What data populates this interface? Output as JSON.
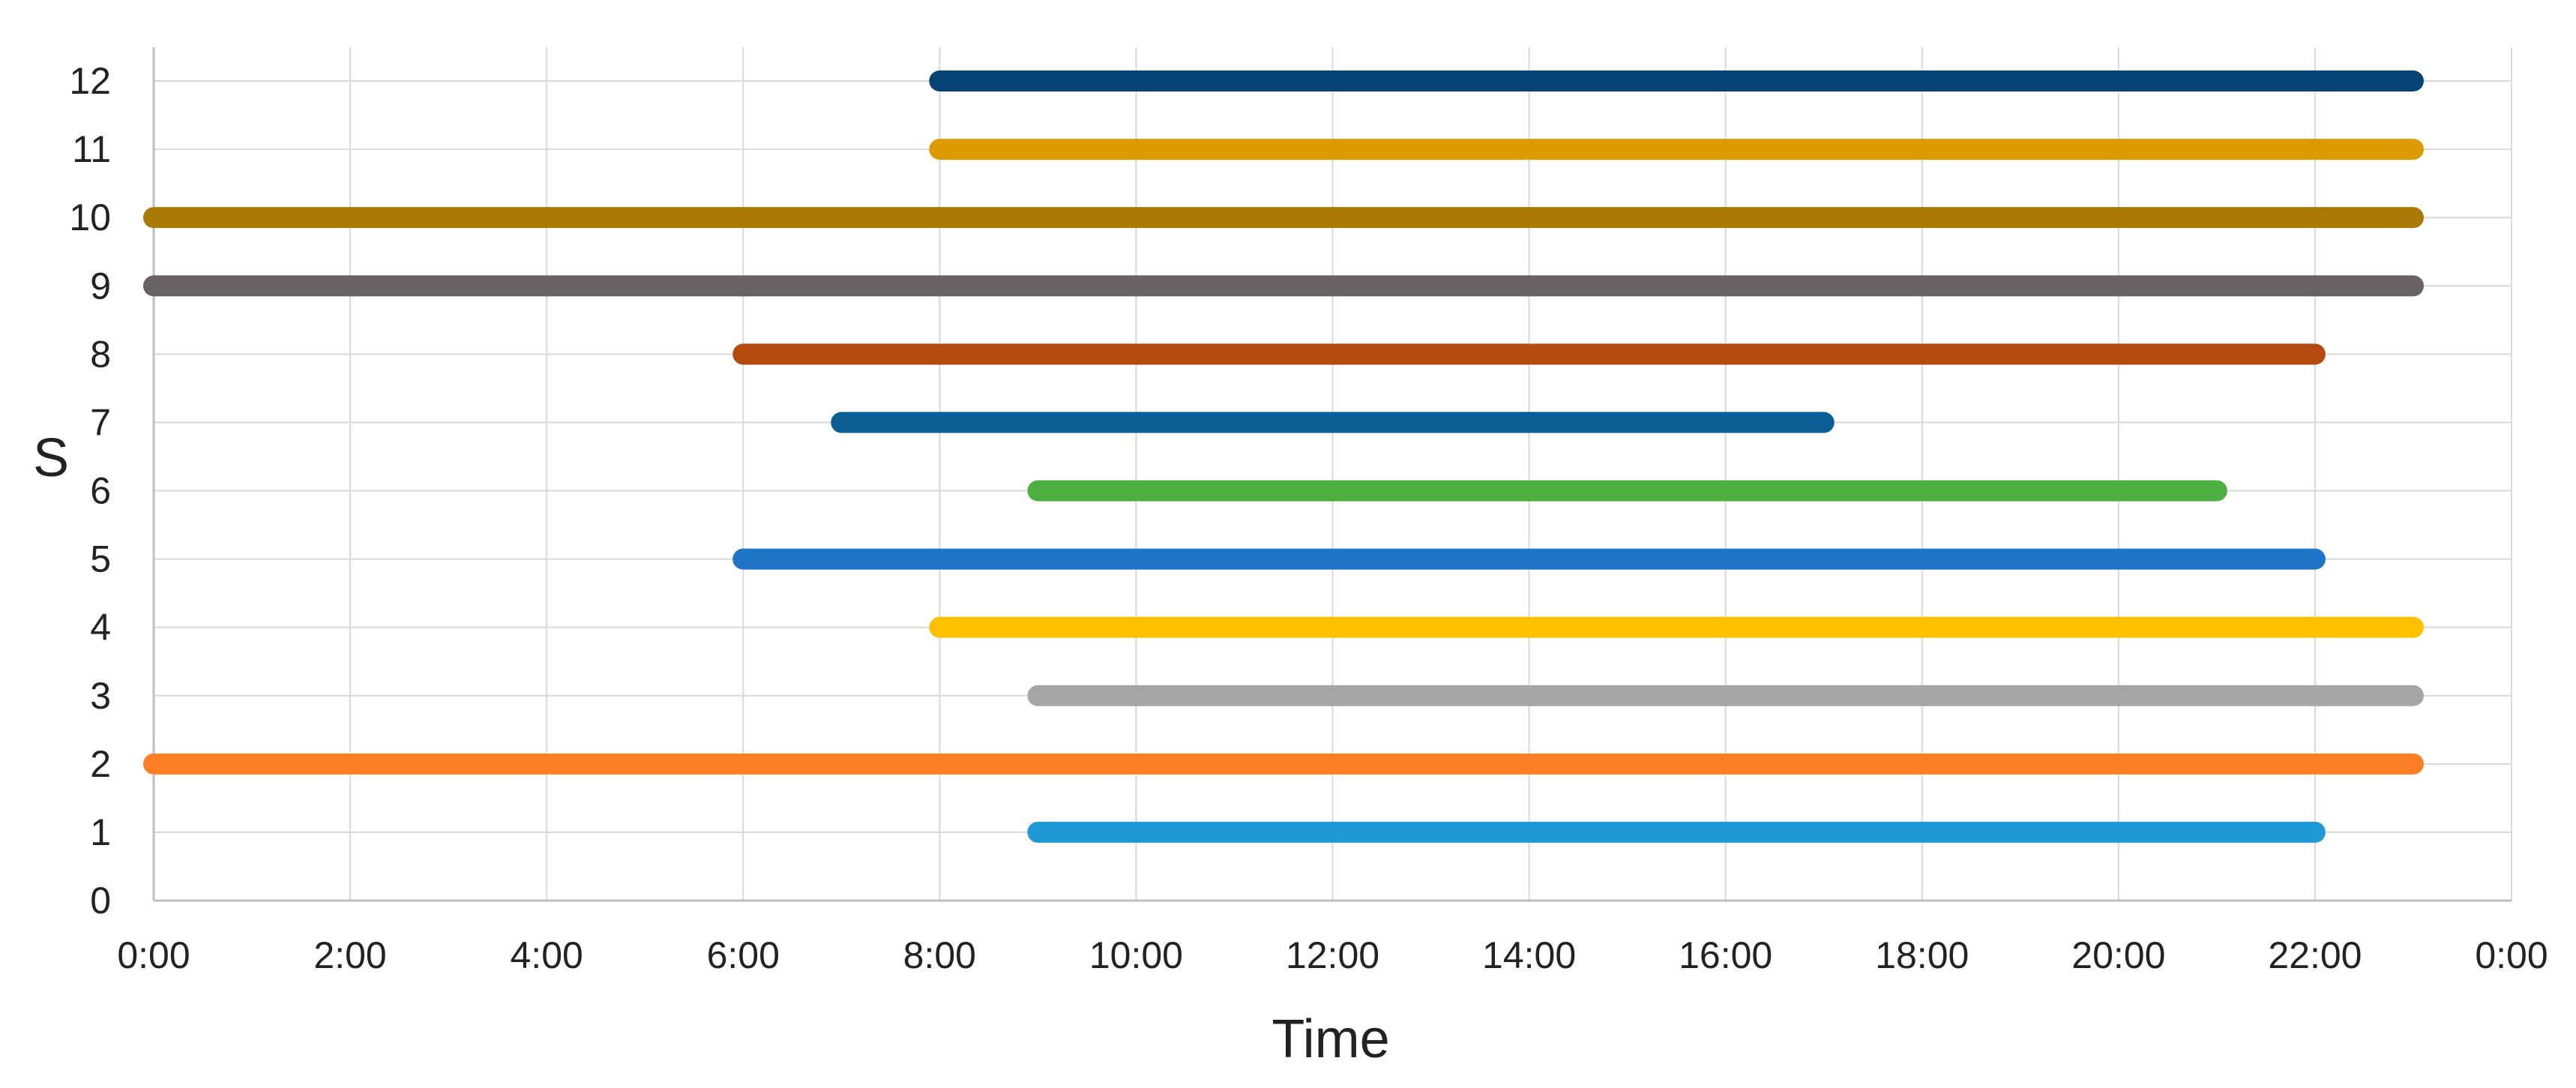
{
  "chart_data": {
    "type": "gantt",
    "xlabel": "Time",
    "ylabel": "S",
    "x_unit": "time of day (hours)",
    "xlim": [
      0,
      24
    ],
    "ylim": [
      0,
      12
    ],
    "x_ticks": [
      0,
      2,
      4,
      6,
      8,
      10,
      12,
      14,
      16,
      18,
      20,
      22,
      24
    ],
    "x_tick_labels": [
      "0:00",
      "2:00",
      "4:00",
      "6:00",
      "8:00",
      "10:00",
      "12:00",
      "14:00",
      "16:00",
      "18:00",
      "20:00",
      "22:00",
      "0:00"
    ],
    "y_ticks": [
      0,
      1,
      2,
      3,
      4,
      5,
      6,
      7,
      8,
      9,
      10,
      11,
      12
    ],
    "y_tick_labels": [
      "0",
      "1",
      "2",
      "3",
      "4",
      "5",
      "6",
      "7",
      "8",
      "9",
      "10",
      "11",
      "12"
    ],
    "grid": true,
    "legend": "none",
    "series": [
      {
        "s": 1,
        "start": 9,
        "end": 22,
        "color": "#1f9ad6"
      },
      {
        "s": 2,
        "start": 0,
        "end": 23,
        "color": "#ff7f27"
      },
      {
        "s": 3,
        "start": 9,
        "end": 23,
        "color": "#a6a6a6"
      },
      {
        "s": 4,
        "start": 8,
        "end": 23,
        "color": "#ffc000"
      },
      {
        "s": 5,
        "start": 6,
        "end": 22,
        "color": "#1f74c8"
      },
      {
        "s": 6,
        "start": 9,
        "end": 21,
        "color": "#4caf3f"
      },
      {
        "s": 7,
        "start": 7,
        "end": 17,
        "color": "#0b5e93"
      },
      {
        "s": 8,
        "start": 6,
        "end": 22,
        "color": "#b34a0e"
      },
      {
        "s": 9,
        "start": 0,
        "end": 23,
        "color": "#666263"
      },
      {
        "s": 10,
        "start": 0,
        "end": 23,
        "color": "#a97a05"
      },
      {
        "s": 11,
        "start": 8,
        "end": 23,
        "color": "#dc9b03"
      },
      {
        "s": 12,
        "start": 8,
        "end": 23,
        "color": "#074275"
      }
    ]
  }
}
